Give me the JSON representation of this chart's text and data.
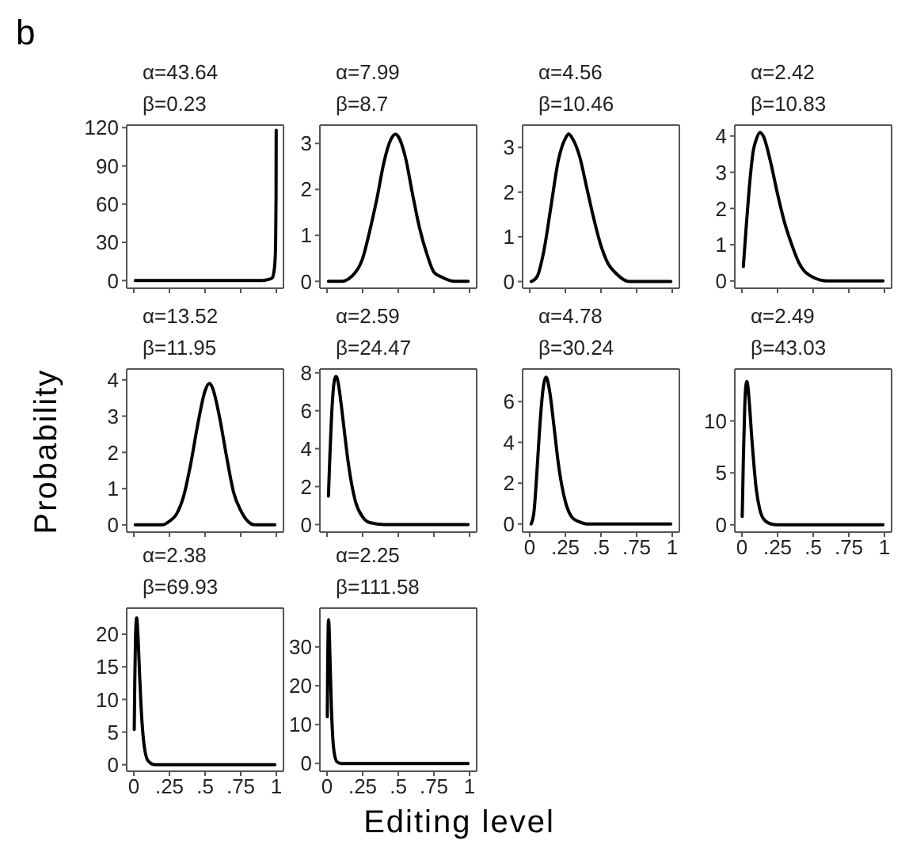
{
  "chart_data": [
    {
      "type": "line",
      "title": "α=43.64",
      "subtitle": "β=0.23",
      "annotations": [
        "b"
      ],
      "color": "#000000",
      "x": [
        0.01,
        0.2,
        0.4,
        0.6,
        0.8,
        0.9,
        0.95,
        0.97,
        0.98,
        0.99,
        0.995,
        0.998,
        0.999
      ],
      "values": [
        0,
        0,
        0,
        0,
        0,
        0,
        1,
        2,
        5,
        14,
        29,
        66,
        118
      ],
      "xlim": [
        -0.05,
        1.05
      ],
      "xticks": [
        0,
        0.25,
        0.5,
        0.75,
        1
      ],
      "ylim": [
        -6,
        122
      ],
      "yticks": [
        0,
        30,
        60,
        90,
        120
      ],
      "tick_labels": "y"
    },
    {
      "type": "line",
      "title": "α=7.99",
      "subtitle": "β=8.7",
      "color": "#000000",
      "x": [
        0.01,
        0.1,
        0.2,
        0.25,
        0.3,
        0.35,
        0.4,
        0.45,
        0.48,
        0.5,
        0.55,
        0.6,
        0.65,
        0.7,
        0.75,
        0.8,
        0.9,
        0.99
      ],
      "values": [
        0,
        0,
        0.2,
        0.5,
        1.1,
        1.8,
        2.6,
        3.1,
        3.2,
        3.15,
        2.7,
        1.9,
        1.15,
        0.6,
        0.2,
        0.1,
        0,
        0
      ],
      "xlim": [
        -0.05,
        1.05
      ],
      "xticks": [
        0,
        0.25,
        0.5,
        0.75,
        1
      ],
      "ylim": [
        -0.15,
        3.4
      ],
      "yticks": [
        0,
        1,
        2,
        3
      ],
      "tick_labels": "y"
    },
    {
      "type": "line",
      "title": "α=4.56",
      "subtitle": "β=10.46",
      "color": "#000000",
      "x": [
        0.01,
        0.05,
        0.1,
        0.15,
        0.2,
        0.25,
        0.273,
        0.3,
        0.35,
        0.4,
        0.45,
        0.5,
        0.55,
        0.6,
        0.7,
        0.8,
        0.99
      ],
      "values": [
        0,
        0.1,
        0.7,
        1.7,
        2.7,
        3.2,
        3.3,
        3.2,
        2.8,
        2.1,
        1.4,
        0.8,
        0.4,
        0.2,
        0,
        0,
        0
      ],
      "xlim": [
        -0.05,
        1.05
      ],
      "xticks": [
        0,
        0.25,
        0.5,
        0.75,
        1
      ],
      "ylim": [
        -0.15,
        3.5
      ],
      "yticks": [
        0,
        1,
        2,
        3
      ],
      "tick_labels": "y"
    },
    {
      "type": "line",
      "title": "α=2.42",
      "subtitle": "β=10.83",
      "color": "#000000",
      "x": [
        0.01,
        0.03,
        0.05,
        0.08,
        0.1,
        0.126,
        0.15,
        0.2,
        0.25,
        0.3,
        0.35,
        0.4,
        0.5,
        0.6,
        0.7,
        0.99
      ],
      "values": [
        0.4,
        1.5,
        2.5,
        3.6,
        3.9,
        4.1,
        4,
        3.3,
        2.4,
        1.6,
        1,
        0.5,
        0.1,
        0,
        0,
        0
      ],
      "xlim": [
        -0.05,
        1.05
      ],
      "xticks": [
        0,
        0.25,
        0.5,
        0.75,
        1
      ],
      "ylim": [
        -0.2,
        4.3
      ],
      "yticks": [
        0,
        1,
        2,
        3,
        4
      ],
      "tick_labels": "y"
    },
    {
      "type": "line",
      "title": "α=13.52",
      "subtitle": "β=11.95",
      "ylabel": "Probability",
      "color": "#000000",
      "x": [
        0.01,
        0.2,
        0.25,
        0.3,
        0.35,
        0.4,
        0.45,
        0.5,
        0.53,
        0.55,
        0.6,
        0.65,
        0.7,
        0.75,
        0.8,
        0.85,
        0.9,
        0.99
      ],
      "values": [
        0,
        0,
        0.1,
        0.3,
        0.8,
        1.7,
        2.8,
        3.7,
        3.9,
        3.8,
        3,
        1.9,
        0.9,
        0.4,
        0.1,
        0,
        0,
        0
      ],
      "xlim": [
        -0.05,
        1.05
      ],
      "xticks": [
        0,
        0.25,
        0.5,
        0.75,
        1
      ],
      "ylim": [
        -0.2,
        4.3
      ],
      "yticks": [
        0,
        1,
        2,
        3,
        4
      ],
      "tick_labels": "y"
    },
    {
      "type": "line",
      "title": "α=2.59",
      "subtitle": "β=24.47",
      "color": "#000000",
      "x": [
        0.01,
        0.02,
        0.03,
        0.045,
        0.055,
        0.063,
        0.072,
        0.08,
        0.1,
        0.125,
        0.15,
        0.2,
        0.25,
        0.3,
        0.4,
        0.5,
        0.75,
        0.99
      ],
      "values": [
        1.5,
        3.6,
        5.4,
        7.2,
        7.7,
        7.8,
        7.7,
        7.4,
        6.3,
        4.7,
        3.2,
        1.2,
        0.4,
        0.1,
        0,
        0,
        0,
        0
      ],
      "xlim": [
        -0.05,
        1.05
      ],
      "xticks": [
        0,
        0.25,
        0.5,
        0.75,
        1
      ],
      "ylim": [
        -0.4,
        8.2
      ],
      "yticks": [
        0,
        2,
        4,
        6,
        8
      ],
      "tick_labels": "y"
    },
    {
      "type": "line",
      "title": "α=4.78",
      "subtitle": "β=30.24",
      "color": "#000000",
      "x": [
        0.01,
        0.03,
        0.05,
        0.07,
        0.09,
        0.115,
        0.14,
        0.17,
        0.2,
        0.25,
        0.3,
        0.35,
        0.4,
        0.5,
        0.75,
        0.99
      ],
      "values": [
        0,
        0.6,
        2.5,
        4.7,
        6.4,
        7.2,
        6.5,
        4.8,
        3,
        1.1,
        0.3,
        0.1,
        0,
        0,
        0,
        0
      ],
      "xlim": [
        -0.05,
        1.05
      ],
      "xticks": [
        0,
        {
          "value": 0.25,
          "label": ".25"
        },
        {
          "value": 0.5,
          "label": ".5"
        },
        {
          "value": 0.75,
          "label": ".75"
        },
        1
      ],
      "ylim": [
        -0.4,
        7.6
      ],
      "yticks": [
        0,
        2,
        4,
        6
      ]
    },
    {
      "type": "line",
      "title": "α=2.49",
      "subtitle": "β=43.03",
      "color": "#000000",
      "x": [
        0.002,
        0.005,
        0.01,
        0.02,
        0.027,
        0.03,
        0.034,
        0.038,
        0.042,
        0.05,
        0.07,
        0.1,
        0.125,
        0.15,
        0.2,
        0.25,
        0.5,
        0.99
      ],
      "values": [
        0.8,
        2.8,
        6.3,
        11.5,
        13.3,
        13.6,
        13.8,
        13.7,
        13.3,
        12.1,
        8.2,
        3.5,
        1.5,
        0.6,
        0.1,
        0,
        0,
        0
      ],
      "xlim": [
        -0.05,
        1.05
      ],
      "xticks": [
        0,
        {
          "value": 0.25,
          "label": ".25"
        },
        {
          "value": 0.5,
          "label": ".5"
        },
        {
          "value": 0.75,
          "label": ".75"
        },
        1
      ],
      "ylim": [
        -0.7,
        15
      ],
      "yticks": [
        0,
        5,
        10
      ]
    },
    {
      "type": "line",
      "title": "α=2.38",
      "subtitle": "β=69.93",
      "color": "#000000",
      "x": [
        0.003,
        0.007,
        0.012,
        0.02,
        0.03,
        0.04,
        0.05,
        0.07,
        0.1,
        0.15,
        0.2,
        0.5,
        0.99
      ],
      "values": [
        5.4,
        13.1,
        19.5,
        22.5,
        19.4,
        14.1,
        9.3,
        3.4,
        0.6,
        0,
        0,
        0,
        0
      ],
      "xlim": [
        -0.05,
        1.05
      ],
      "xticks": [
        0,
        {
          "value": 0.25,
          "label": ".25"
        },
        {
          "value": 0.5,
          "label": ".5"
        },
        {
          "value": 0.75,
          "label": ".75"
        },
        1
      ],
      "ylim": [
        -1,
        24
      ],
      "yticks": [
        0,
        5,
        10,
        15,
        20
      ]
    },
    {
      "type": "line",
      "title": "α=2.25",
      "subtitle": "β=111.58",
      "xlabel": "Editing level",
      "color": "#000000",
      "x": [
        0.002,
        0.005,
        0.008,
        0.011,
        0.015,
        0.02,
        0.03,
        0.04,
        0.05,
        0.07,
        0.1,
        0.2,
        0.5,
        0.99
      ],
      "values": [
        12,
        26.9,
        34.7,
        37,
        34.8,
        28.4,
        15.2,
        6.9,
        2.9,
        0.4,
        0,
        0,
        0,
        0
      ],
      "xlim": [
        -0.05,
        1.05
      ],
      "xticks": [
        0,
        {
          "value": 0.25,
          "label": ".25"
        },
        {
          "value": 0.5,
          "label": ".5"
        },
        {
          "value": 0.75,
          "label": ".75"
        },
        1
      ],
      "ylim": [
        -2,
        40
      ],
      "yticks": [
        0,
        10,
        20,
        30
      ]
    }
  ]
}
